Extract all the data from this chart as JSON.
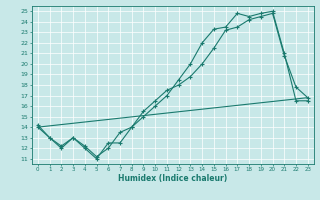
{
  "xlabel": "Humidex (Indice chaleur)",
  "ylabel": "",
  "line_color": "#1a7a6e",
  "bg_color": "#c8e8e8",
  "grid_color": "#b8d8d8",
  "tick_color": "#1a7a6e",
  "xlim": [
    -0.5,
    23.5
  ],
  "ylim": [
    10.5,
    25.5
  ],
  "xticks": [
    0,
    1,
    2,
    3,
    4,
    5,
    6,
    7,
    8,
    9,
    10,
    11,
    12,
    13,
    14,
    15,
    16,
    17,
    18,
    19,
    20,
    21,
    22,
    23
  ],
  "yticks": [
    11,
    12,
    13,
    14,
    15,
    16,
    17,
    18,
    19,
    20,
    21,
    22,
    23,
    24,
    25
  ],
  "line1_x": [
    0,
    1,
    2,
    3,
    4,
    5,
    6,
    7,
    8,
    9,
    10,
    11,
    12,
    13,
    14,
    15,
    16,
    17,
    18,
    19,
    20,
    21,
    22,
    23
  ],
  "line1_y": [
    14.0,
    13.0,
    12.0,
    13.0,
    12.0,
    11.0,
    12.5,
    12.5,
    14.0,
    15.0,
    16.0,
    17.0,
    18.5,
    20.0,
    22.0,
    23.3,
    23.5,
    24.8,
    24.5,
    24.8,
    25.0,
    21.0,
    16.5,
    16.5
  ],
  "line2_x": [
    0,
    1,
    2,
    3,
    4,
    5,
    6,
    7,
    8,
    9,
    10,
    11,
    12,
    13,
    14,
    15,
    16,
    17,
    18,
    19,
    20,
    21,
    22,
    23
  ],
  "line2_y": [
    14.2,
    13.0,
    12.2,
    13.0,
    12.2,
    11.2,
    12.0,
    13.5,
    14.0,
    15.5,
    16.5,
    17.5,
    18.0,
    18.8,
    20.0,
    21.5,
    23.2,
    23.5,
    24.2,
    24.5,
    24.8,
    20.8,
    17.8,
    16.8
  ],
  "line3_x": [
    0,
    23
  ],
  "line3_y": [
    14.0,
    16.8
  ]
}
